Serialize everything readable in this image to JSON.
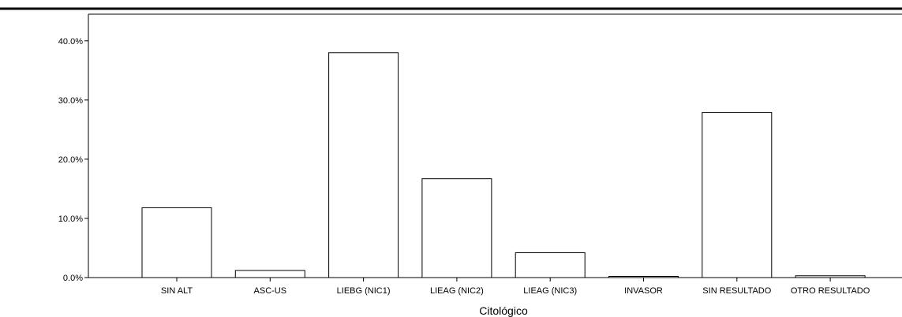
{
  "chart_data": {
    "type": "bar",
    "title": "",
    "xlabel": "Citológico",
    "ylabel": "",
    "categories": [
      "SIN ALT",
      "ASC-US",
      "LIEBG (NIC1)",
      "LIEAG (NIC2)",
      "LIEAG (NIC3)",
      "INVASOR",
      "SIN RESULTADO",
      "OTRO RESULTADO"
    ],
    "values": [
      11.8,
      1.2,
      38.0,
      16.7,
      4.2,
      0.2,
      27.9,
      0.3
    ],
    "value_unit": "percent",
    "ylim": [
      0,
      44.5
    ],
    "yticks": [
      0,
      10,
      20,
      30,
      40
    ],
    "ytick_labels": [
      "0.0%",
      "10.0%",
      "20.0%",
      "30.0%",
      "40.0%"
    ],
    "grid": false,
    "legend": "none",
    "bar_fill": "#ffffff",
    "bar_stroke": "#000000"
  }
}
